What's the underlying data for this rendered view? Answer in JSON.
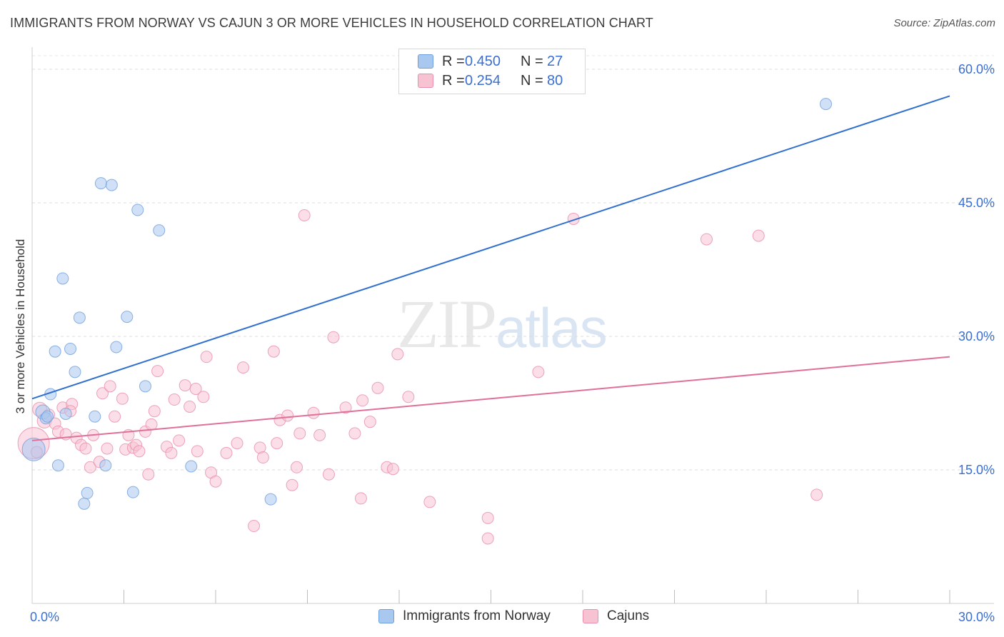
{
  "header": {
    "title": "IMMIGRANTS FROM NORWAY VS CAJUN 3 OR MORE VEHICLES IN HOUSEHOLD CORRELATION CHART",
    "source": "Source: ZipAtlas.com"
  },
  "watermark": {
    "zip": "ZIP",
    "atlas": "atlas"
  },
  "legend_top": {
    "rows": [
      {
        "r_label": "R =",
        "r_value": "0.450",
        "n_label": "N =",
        "n_value": "27",
        "color": "#a9c8f0",
        "border": "#6f9fdc"
      },
      {
        "r_label": "R =",
        "r_value": "0.254",
        "n_label": "N =",
        "n_value": "80",
        "color": "#f7c3d3",
        "border": "#e88fab"
      }
    ]
  },
  "chart_data": {
    "type": "scatter",
    "title": "IMMIGRANTS FROM NORWAY VS CAJUN 3 OR MORE VEHICLES IN HOUSEHOLD CORRELATION CHART",
    "xlabel": "",
    "ylabel": "3 or more Vehicles in Household",
    "xlim": [
      0,
      30
    ],
    "ylim": [
      0,
      60
    ],
    "x_tick_labels": [
      "0.0%",
      "30.0%"
    ],
    "y_ticks": [
      15,
      30,
      45,
      60
    ],
    "y_tick_labels": [
      "15.0%",
      "30.0%",
      "45.0%",
      "60.0%"
    ],
    "grid": true,
    "legend": "bottom-center",
    "series": [
      {
        "name": "Immigrants from Norway",
        "color": "#6f9fdc",
        "fill": "#a9c8f0",
        "line_color": "#2f6fd0",
        "trend": [
          [
            0,
            23.0
          ],
          [
            30,
            57.0
          ]
        ],
        "points": [
          [
            0.05,
            17.3
          ],
          [
            0.35,
            21.5
          ],
          [
            0.45,
            20.8
          ],
          [
            0.5,
            21.0
          ],
          [
            0.6,
            23.5
          ],
          [
            0.75,
            28.3
          ],
          [
            0.85,
            15.5
          ],
          [
            1.0,
            36.5
          ],
          [
            1.1,
            21.3
          ],
          [
            1.25,
            28.6
          ],
          [
            1.4,
            26.0
          ],
          [
            1.55,
            32.1
          ],
          [
            1.7,
            11.2
          ],
          [
            1.8,
            12.4
          ],
          [
            2.05,
            21.0
          ],
          [
            2.25,
            47.2
          ],
          [
            2.4,
            15.5
          ],
          [
            2.6,
            47.0
          ],
          [
            2.75,
            28.8
          ],
          [
            3.1,
            32.2
          ],
          [
            3.3,
            12.5
          ],
          [
            3.45,
            44.2
          ],
          [
            3.7,
            24.4
          ],
          [
            4.15,
            41.9
          ],
          [
            5.2,
            15.4
          ],
          [
            7.8,
            11.7
          ],
          [
            25.95,
            56.1
          ]
        ],
        "sizes": [
          16,
          10,
          8,
          8,
          8,
          8,
          8,
          8,
          8,
          8,
          8,
          8,
          8,
          8,
          8,
          8,
          8,
          8,
          8,
          8,
          8,
          8,
          8,
          8,
          8,
          8,
          8
        ]
      },
      {
        "name": "Cajuns",
        "color": "#e88fab",
        "fill": "#f7c3d3",
        "line_color": "#e07099",
        "trend": [
          [
            0,
            18.3
          ],
          [
            30,
            27.7
          ]
        ],
        "points": [
          [
            0.05,
            18.0
          ],
          [
            0.25,
            21.8
          ],
          [
            0.4,
            20.5
          ],
          [
            0.55,
            21.2
          ],
          [
            0.75,
            20.2
          ],
          [
            0.85,
            19.3
          ],
          [
            1.0,
            22.0
          ],
          [
            1.1,
            19.0
          ],
          [
            1.3,
            22.4
          ],
          [
            1.45,
            18.6
          ],
          [
            1.6,
            17.8
          ],
          [
            1.75,
            17.4
          ],
          [
            1.9,
            15.3
          ],
          [
            2.0,
            18.9
          ],
          [
            2.2,
            15.9
          ],
          [
            2.3,
            23.6
          ],
          [
            2.45,
            17.4
          ],
          [
            2.55,
            24.4
          ],
          [
            2.7,
            21.0
          ],
          [
            2.95,
            23.0
          ],
          [
            3.05,
            17.3
          ],
          [
            3.15,
            18.9
          ],
          [
            3.3,
            17.5
          ],
          [
            3.4,
            17.8
          ],
          [
            3.5,
            17.1
          ],
          [
            3.7,
            19.3
          ],
          [
            3.8,
            14.5
          ],
          [
            3.9,
            20.1
          ],
          [
            4.0,
            21.6
          ],
          [
            4.1,
            26.1
          ],
          [
            4.4,
            17.6
          ],
          [
            4.55,
            16.9
          ],
          [
            4.65,
            22.9
          ],
          [
            4.8,
            18.3
          ],
          [
            5.0,
            24.5
          ],
          [
            5.15,
            22.1
          ],
          [
            5.35,
            24.1
          ],
          [
            5.4,
            17.1
          ],
          [
            5.6,
            23.2
          ],
          [
            5.7,
            27.7
          ],
          [
            5.85,
            14.7
          ],
          [
            6.0,
            13.7
          ],
          [
            6.35,
            16.9
          ],
          [
            6.7,
            18.0
          ],
          [
            6.9,
            26.5
          ],
          [
            7.25,
            8.7
          ],
          [
            7.45,
            17.5
          ],
          [
            7.55,
            16.4
          ],
          [
            7.9,
            28.3
          ],
          [
            8.0,
            18.0
          ],
          [
            8.1,
            20.6
          ],
          [
            8.35,
            21.1
          ],
          [
            8.5,
            13.3
          ],
          [
            8.65,
            15.3
          ],
          [
            8.75,
            19.1
          ],
          [
            8.9,
            43.6
          ],
          [
            9.2,
            21.4
          ],
          [
            9.4,
            18.9
          ],
          [
            9.7,
            14.5
          ],
          [
            9.85,
            29.9
          ],
          [
            10.25,
            22.0
          ],
          [
            10.55,
            19.1
          ],
          [
            10.75,
            11.8
          ],
          [
            10.8,
            22.8
          ],
          [
            11.05,
            20.4
          ],
          [
            11.3,
            24.2
          ],
          [
            11.6,
            15.3
          ],
          [
            11.8,
            15.1
          ],
          [
            11.95,
            28.0
          ],
          [
            12.3,
            23.2
          ],
          [
            13.0,
            11.4
          ],
          [
            14.9,
            9.6
          ],
          [
            14.9,
            7.3
          ],
          [
            16.55,
            26.0
          ],
          [
            17.7,
            43.2
          ],
          [
            22.05,
            40.9
          ],
          [
            23.75,
            41.3
          ],
          [
            25.65,
            12.2
          ],
          [
            0.15,
            17.0
          ],
          [
            1.25,
            21.6
          ]
        ],
        "sizes": [
          22,
          10,
          10,
          8,
          8,
          8,
          8,
          8,
          8,
          8,
          8,
          8,
          8,
          8,
          8,
          8,
          8,
          8,
          8,
          8,
          8,
          8,
          8,
          8,
          8,
          8,
          8,
          8,
          8,
          8,
          8,
          8,
          8,
          8,
          8,
          8,
          8,
          8,
          8,
          8,
          8,
          8,
          8,
          8,
          8,
          8,
          8,
          8,
          8,
          8,
          8,
          8,
          8,
          8,
          8,
          8,
          8,
          8,
          8,
          8,
          8,
          8,
          8,
          8,
          8,
          8,
          8,
          8,
          8,
          8,
          8,
          8,
          8,
          8,
          8,
          8,
          8,
          8,
          8,
          8
        ]
      }
    ]
  }
}
